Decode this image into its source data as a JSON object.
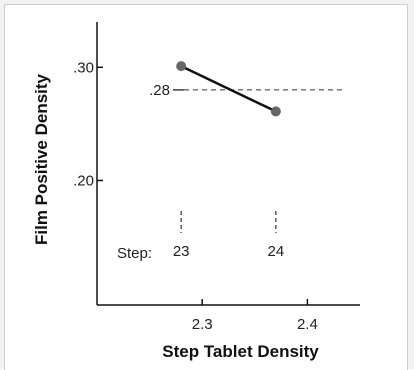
{
  "chart_data": {
    "type": "line",
    "xlabel": "Step Tablet Density",
    "ylabel": "Film Positive Density",
    "xlim": [
      2.2,
      2.45
    ],
    "ylim": [
      0.09,
      0.34
    ],
    "x_ticks": [
      "2.3",
      "2.4"
    ],
    "x_tick_values": [
      2.3,
      2.4
    ],
    "y_ticks": [
      ".30",
      ".20"
    ],
    "y_tick_values": [
      0.3,
      0.2
    ],
    "series": [
      {
        "x": [
          2.28,
          2.37
        ],
        "y": [
          0.301,
          0.261
        ]
      }
    ],
    "reference_line": {
      "y": 0.28,
      "label": ".28"
    },
    "steps": {
      "label": "Step:",
      "items": [
        {
          "x": 2.28,
          "label": "23"
        },
        {
          "x": 2.37,
          "label": "24"
        }
      ]
    },
    "grid": false,
    "colors": {
      "line": "#111111",
      "marker": "#666666",
      "dashed": "#333333",
      "axis": "#111111"
    }
  }
}
